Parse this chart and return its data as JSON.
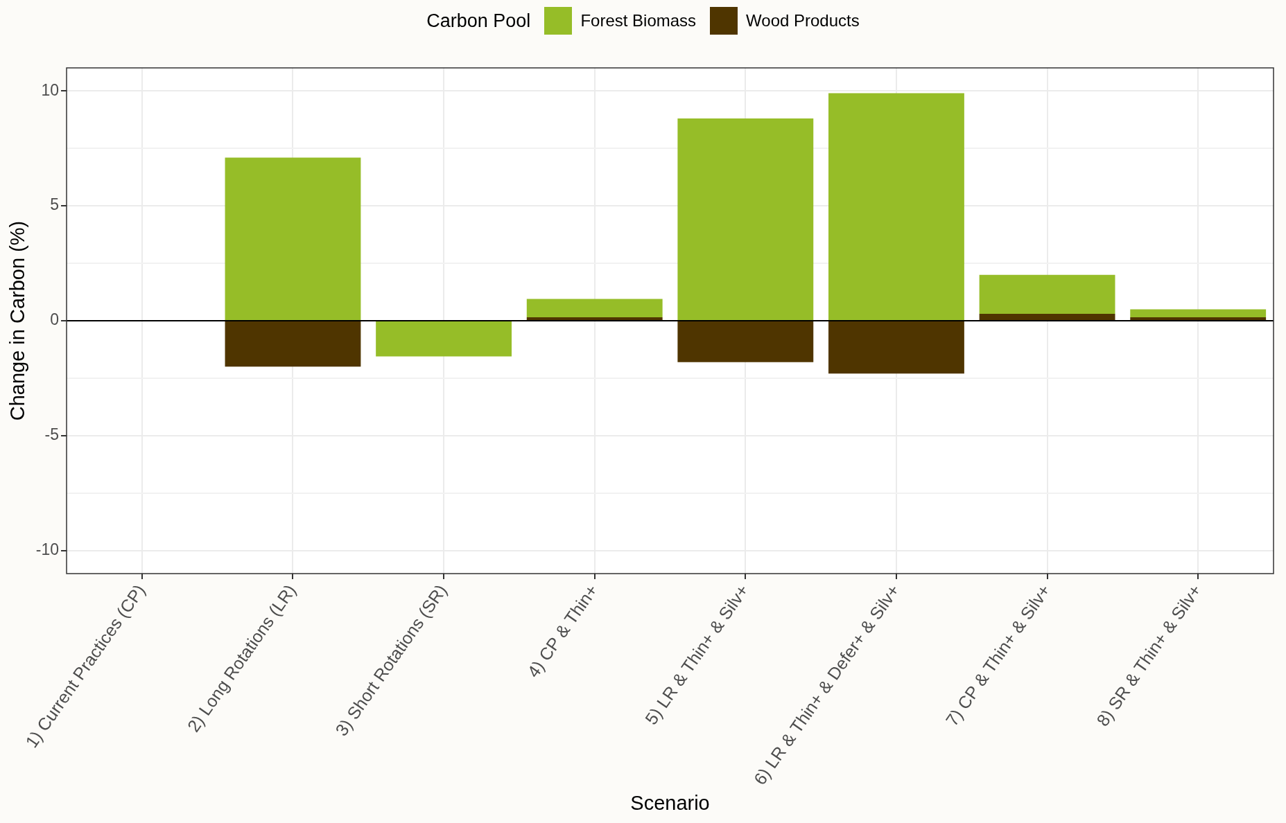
{
  "chart_data": {
    "type": "bar",
    "xlabel": "Scenario",
    "ylabel": "Change in Carbon (%)",
    "legend_title": "Carbon Pool",
    "legend": "top",
    "categories": [
      "1) Current Practices (CP)",
      "2) Long Rotations (LR)",
      "3) Short Rotations (SR)",
      "4) CP & Thin+",
      "5) LR & Thin+ & Silv+",
      "6) LR & Thin+ & Defer+ & Silv+",
      "7) CP & Thin+ & Silv+",
      "8) SR & Thin+ & Silv+"
    ],
    "stacked": true,
    "series": [
      {
        "name": "Wood Products",
        "color": "#4f3500",
        "values": [
          0,
          -2.0,
          0,
          0.15,
          -1.8,
          -2.3,
          0.3,
          0.15
        ]
      },
      {
        "name": "Forest Biomass",
        "color": "#96bd28",
        "values": [
          0,
          7.1,
          -1.55,
          0.8,
          8.8,
          9.9,
          1.7,
          0.35
        ]
      }
    ],
    "ylim": [
      -11,
      11
    ],
    "yticks": [
      -10,
      {
        "value": -7.5,
        "label": null
      },
      -5,
      {
        "value": -2.5,
        "label": null
      },
      0,
      {
        "value": 2.5,
        "label": null
      },
      5,
      {
        "value": 7.5,
        "label": null
      },
      10
    ],
    "grid": true,
    "ref_lines": [
      {
        "axis": "y",
        "value": 0,
        "color": "#000000"
      }
    ]
  }
}
